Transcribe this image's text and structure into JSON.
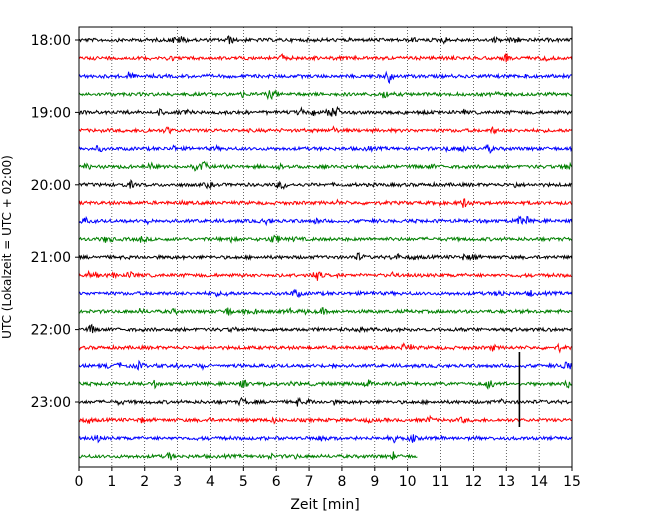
{
  "chart_data": {
    "type": "line",
    "title": "",
    "xlabel": "Zeit  [min]",
    "ylabel": "UTC (Lokalzeit = UTC + 02:00)",
    "xlim": [
      0,
      15
    ],
    "x_ticks": [
      0,
      1,
      2,
      3,
      4,
      5,
      6,
      7,
      8,
      9,
      10,
      11,
      12,
      13,
      14,
      15
    ],
    "x_tick_labels": [
      "0",
      "1",
      "2",
      "3",
      "4",
      "5",
      "6",
      "7",
      "8",
      "9",
      "10",
      "11",
      "12",
      "13",
      "14",
      "15"
    ],
    "y_tick_labels": [
      "18:00",
      "19:00",
      "20:00",
      "21:00",
      "22:00",
      "23:00"
    ],
    "grid_vertical": "dotted",
    "trace_colors": [
      "#000000",
      "#ff0000",
      "#0000ff",
      "#008000"
    ],
    "traces": [
      {
        "start": "18:00",
        "end_min": 15
      },
      {
        "start": "18:15",
        "end_min": 15
      },
      {
        "start": "18:30",
        "end_min": 15
      },
      {
        "start": "18:45",
        "end_min": 15
      },
      {
        "start": "19:00",
        "end_min": 15
      },
      {
        "start": "19:15",
        "end_min": 15
      },
      {
        "start": "19:30",
        "end_min": 15
      },
      {
        "start": "19:45",
        "end_min": 15
      },
      {
        "start": "20:00",
        "end_min": 15
      },
      {
        "start": "20:15",
        "end_min": 15
      },
      {
        "start": "20:30",
        "end_min": 15
      },
      {
        "start": "20:45",
        "end_min": 15
      },
      {
        "start": "21:00",
        "end_min": 15
      },
      {
        "start": "21:15",
        "end_min": 15
      },
      {
        "start": "21:30",
        "end_min": 15
      },
      {
        "start": "21:45",
        "end_min": 15
      },
      {
        "start": "22:00",
        "end_min": 15
      },
      {
        "start": "22:15",
        "end_min": 15
      },
      {
        "start": "22:30",
        "end_min": 15
      },
      {
        "start": "22:45",
        "end_min": 15
      },
      {
        "start": "23:00",
        "end_min": 15
      },
      {
        "start": "23:15",
        "end_min": 15
      },
      {
        "start": "23:30",
        "end_min": 15
      },
      {
        "start": "23:45",
        "end_min": 10.3
      }
    ],
    "events": [
      {
        "trace": "23:00",
        "minute": 13.4,
        "amplitude": "large"
      }
    ]
  }
}
